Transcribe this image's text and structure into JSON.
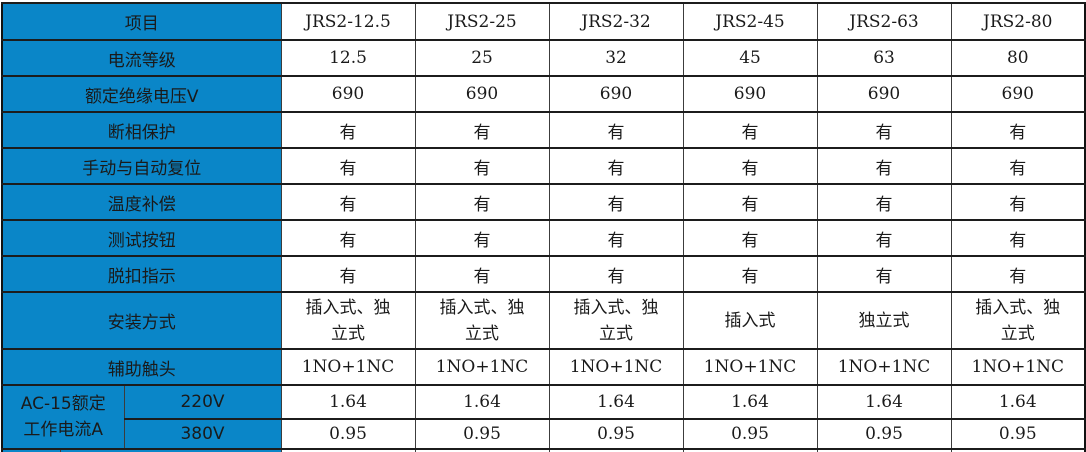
{
  "colors": {
    "header_blue": "#0A86C8",
    "grid_border": "#1C1C1C",
    "text_on_blue": "#FFFFFF",
    "text_dark": "#1A1A1A",
    "background": "#FFFFFF"
  },
  "table": {
    "header": {
      "label": "项目",
      "models": [
        "JRS2-12.5",
        "JRS2-25",
        "JRS2-32",
        "JRS2-45",
        "JRS2-63",
        "JRS2-80"
      ]
    },
    "rows": [
      {
        "name": "current-rating",
        "label": "电流等级",
        "values": [
          "12.5",
          "25",
          "32",
          "45",
          "63",
          "80"
        ]
      },
      {
        "name": "rated-insulation-voltage",
        "label": "额定绝缘电压V",
        "values": [
          "690",
          "690",
          "690",
          "690",
          "690",
          "690"
        ]
      },
      {
        "name": "phase-failure-protection",
        "label": "断相保护",
        "values": [
          "有",
          "有",
          "有",
          "有",
          "有",
          "有"
        ]
      },
      {
        "name": "manual-auto-reset",
        "label": "手动与自动复位",
        "values": [
          "有",
          "有",
          "有",
          "有",
          "有",
          "有"
        ]
      },
      {
        "name": "temperature-compensation",
        "label": "温度补偿",
        "values": [
          "有",
          "有",
          "有",
          "有",
          "有",
          "有"
        ]
      },
      {
        "name": "test-button",
        "label": "测试按钮",
        "values": [
          "有",
          "有",
          "有",
          "有",
          "有",
          "有"
        ]
      },
      {
        "name": "trip-indication",
        "label": "脱扣指示",
        "values": [
          "有",
          "有",
          "有",
          "有",
          "有",
          "有"
        ]
      },
      {
        "name": "mounting-type",
        "label": "安装方式",
        "values": [
          "插入式、独立式",
          "插入式、独立式",
          "插入式、独立式",
          "插入式",
          "独立式",
          "插入式、独立式"
        ],
        "tall": true
      },
      {
        "name": "auxiliary-contact",
        "label": "辅助触头",
        "values": [
          "1NO+1NC",
          "1NO+1NC",
          "1NO+1NC",
          "1NO+1NC",
          "1NO+1NC",
          "1NO+1NC"
        ]
      }
    ],
    "ac15": {
      "label_line1": "AC-15额定",
      "label_line2": "工作电流A",
      "subrows": [
        {
          "name": "ac15-220v",
          "label": "220V",
          "values": [
            "1.64",
            "1.64",
            "1.64",
            "1.64",
            "1.64",
            "1.64"
          ]
        },
        {
          "name": "ac15-380v",
          "label": "380V",
          "values": [
            "0.95",
            "0.95",
            "0.95",
            "0.95",
            "0.95",
            "0.95"
          ]
        }
      ]
    }
  }
}
